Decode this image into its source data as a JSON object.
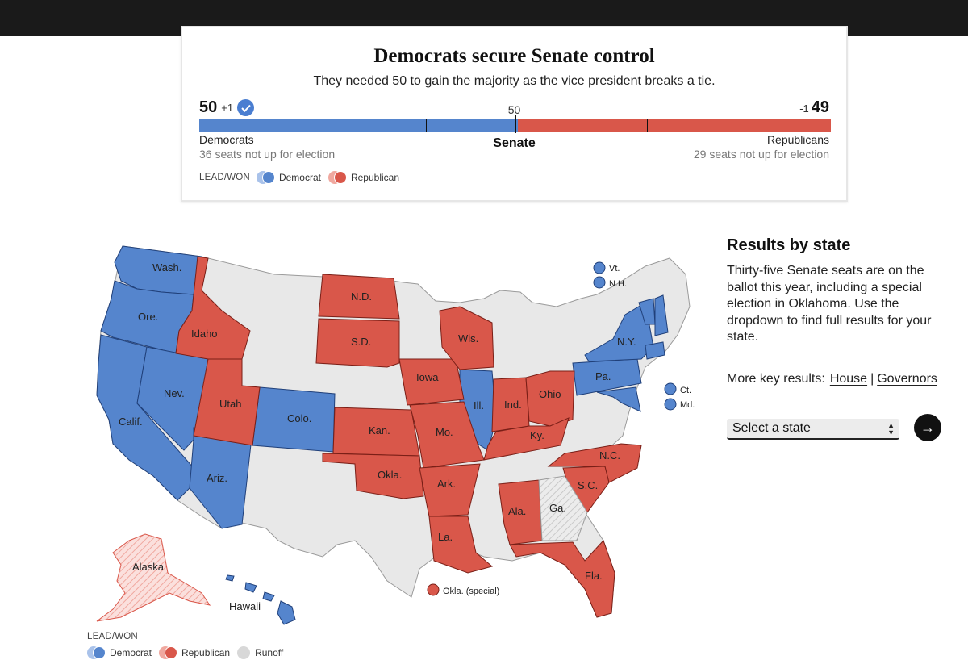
{
  "colors": {
    "democrat": "#5585cd",
    "democrat_light": "#a9c2ea",
    "republican": "#d9574a",
    "republican_light": "#f0a89f",
    "tossup": "#e8e8e8",
    "alaska_rep_lead": "#f9d2cf"
  },
  "header": {
    "title": "Democrats secure Senate control",
    "subtitle": "They needed 50 to gain the majority as the vice president breaks a tie."
  },
  "scoreboard": {
    "dem_seats": "50",
    "dem_change": "+1",
    "dem_called_icon": "check-circle-icon",
    "rep_seats": "49",
    "rep_change": "-1",
    "majority_mark": "50",
    "chamber": "Senate",
    "dem_label": "Democrats",
    "dem_not_up": "36 seats not up for election",
    "rep_label": "Republicans",
    "rep_not_up": "29 seats not up for election"
  },
  "legend": {
    "title": "LEAD/WON",
    "democrat": "Democrat",
    "republican": "Republican",
    "runoff": "Runoff"
  },
  "map": {
    "labels": {
      "wash": "Wash.",
      "ore": "Ore.",
      "calif": "Calif.",
      "nev": "Nev.",
      "idaho": "Idaho",
      "utah": "Utah",
      "ariz": "Ariz.",
      "colo": "Colo.",
      "nd": "N.D.",
      "sd": "S.D.",
      "kan": "Kan.",
      "okla": "Okla.",
      "iowa": "Iowa",
      "mo": "Mo.",
      "ark": "Ark.",
      "la": "La.",
      "wis": "Wis.",
      "ill": "Ill.",
      "ind": "Ind.",
      "ohio": "Ohio",
      "ky": "Ky.",
      "ala": "Ala.",
      "ga": "Ga.",
      "fla": "Fla.",
      "sc": "S.C.",
      "nc": "N.C.",
      "pa": "Pa.",
      "ny": "N.Y.",
      "vt": "Vt.",
      "nh": "N.H.",
      "ct": "Ct.",
      "md": "Md.",
      "alaska": "Alaska",
      "hawaii": "Hawaii",
      "okla_special": "Okla. (special)"
    }
  },
  "sidebar": {
    "title": "Results by state",
    "description": "Thirty-five Senate seats are on the ballot this year, including a special election in Oklahoma. Use the dropdown to find full results for your state.",
    "key_results_prefix": "More key results:",
    "house_link": "House",
    "separator": "|",
    "governors_link": "Governors",
    "select_placeholder": "Select a state",
    "go_icon": "arrow-right-icon"
  }
}
